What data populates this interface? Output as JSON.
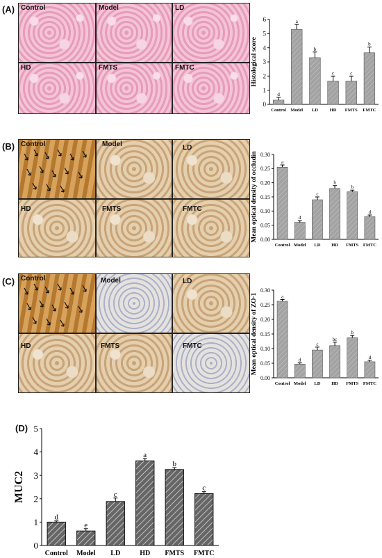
{
  "panels": {
    "A": {
      "label": "(A)",
      "images": [
        "Control",
        "Model",
        "LD",
        "HD",
        "FMTS",
        "FMTC"
      ]
    },
    "B": {
      "label": "(B)",
      "images": [
        "Control",
        "Model",
        "LD",
        "HD",
        "FMTS",
        "FMTC"
      ]
    },
    "C": {
      "label": "(C)",
      "images": [
        "Control",
        "Model",
        "LD",
        "HD",
        "FMTS",
        "FMTC"
      ]
    },
    "D": {
      "label": "(D)"
    }
  },
  "chart_data": [
    {
      "id": "A",
      "type": "bar",
      "categories": [
        "Control",
        "Model",
        "LD",
        "HD",
        "FMTS",
        "FMTC"
      ],
      "values": [
        0.3,
        5.3,
        3.3,
        1.65,
        1.65,
        3.65
      ],
      "errors": [
        0.2,
        0.35,
        0.4,
        0.35,
        0.35,
        0.4
      ],
      "letters": [
        "d",
        "a",
        "b",
        "c",
        "c",
        "b"
      ],
      "ylabel": "Histological score",
      "ylim": [
        0,
        6
      ],
      "yticks": [
        0,
        1,
        2,
        3,
        4,
        5,
        6
      ]
    },
    {
      "id": "B",
      "type": "bar",
      "categories": [
        "Control",
        "Model",
        "LD",
        "HD",
        "FMTS",
        "FMTC"
      ],
      "values": [
        0.255,
        0.06,
        0.14,
        0.18,
        0.168,
        0.08
      ],
      "errors": [
        0.008,
        0.006,
        0.01,
        0.01,
        0.006,
        0.006
      ],
      "letters": [
        "a",
        "d",
        "c",
        "b",
        "b",
        "d"
      ],
      "ylabel": "Mean optical density of occludin",
      "ylim": [
        0,
        0.3
      ],
      "yticks": [
        "0.00",
        "0.05",
        "0.10",
        "0.15",
        "0.20",
        "0.25",
        "0.30"
      ]
    },
    {
      "id": "C",
      "type": "bar",
      "categories": [
        "Control",
        "Model",
        "LD",
        "HD",
        "FMTS",
        "FMTC"
      ],
      "values": [
        0.262,
        0.047,
        0.095,
        0.11,
        0.137,
        0.055
      ],
      "errors": [
        0.006,
        0.004,
        0.01,
        0.012,
        0.008,
        0.005
      ],
      "letters": [
        "a",
        "d",
        "c",
        "bc",
        "b",
        "d"
      ],
      "ylabel": "Mean optical density of ZO-1",
      "ylim": [
        0,
        0.3
      ],
      "yticks": [
        "0.00",
        "0.05",
        "0.10",
        "0.15",
        "0.20",
        "0.25",
        "0.30"
      ]
    },
    {
      "id": "D",
      "type": "bar",
      "categories": [
        "Control",
        "Model",
        "LD",
        "HD",
        "FMTS",
        "FMTC"
      ],
      "values": [
        1.0,
        0.62,
        1.88,
        3.62,
        3.25,
        2.22
      ],
      "errors": [
        0.05,
        0.1,
        0.15,
        0.1,
        0.08,
        0.08
      ],
      "letters": [
        "d",
        "e",
        "c",
        "a",
        "b",
        "c"
      ],
      "ylabel": "MUC2",
      "ylim": [
        0,
        5
      ],
      "yticks": [
        0,
        1,
        2,
        3,
        4,
        5
      ]
    }
  ]
}
